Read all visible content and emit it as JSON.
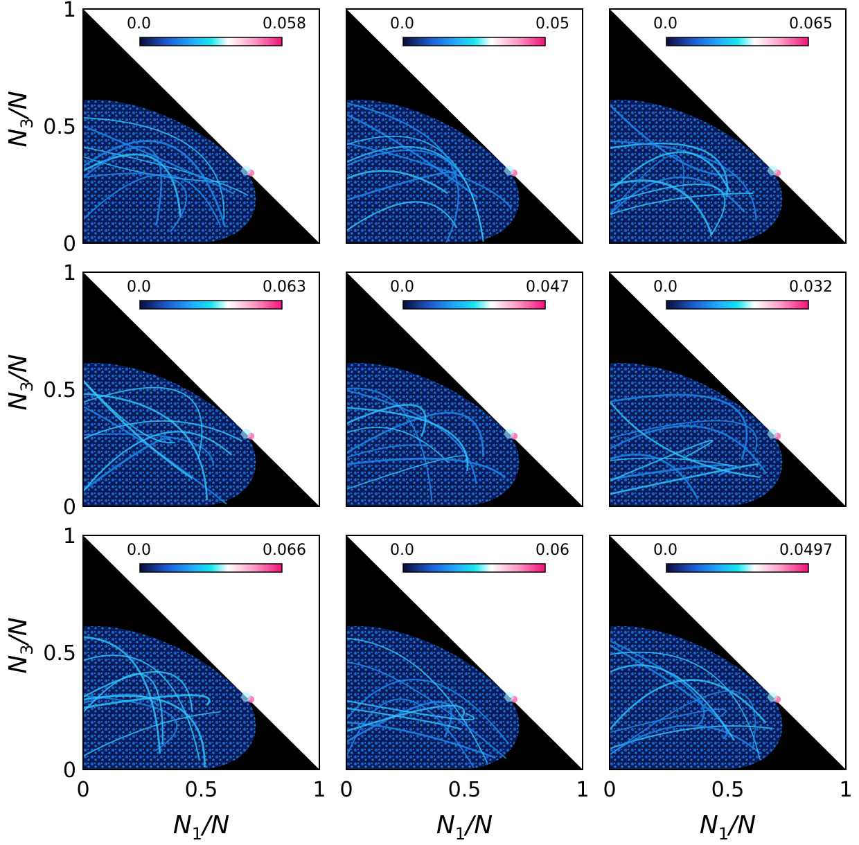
{
  "chart_data": {
    "type": "heatmap",
    "grid": {
      "rows": 3,
      "cols": 3
    },
    "x_axis": {
      "label_main": "N",
      "label_sub": "1",
      "label_tail": "/N",
      "ticks": [
        "0",
        "0.5",
        "1"
      ],
      "range": [
        0,
        1
      ]
    },
    "y_axis": {
      "label_main": "N",
      "label_sub": "3",
      "label_tail": "/N",
      "ticks": [
        "0",
        "0.5",
        "1"
      ],
      "range": [
        0,
        1
      ]
    },
    "colormap": [
      "#0a0a3a",
      "#1e5fd6",
      "#1fb0ff",
      "#14e6f0",
      "#ffffff",
      "#ff9ec8",
      "#f0107a"
    ],
    "panels": [
      {
        "row": 0,
        "col": 0,
        "cbar_min": "0.0",
        "cbar_max": "0.058"
      },
      {
        "row": 0,
        "col": 1,
        "cbar_min": "0.0",
        "cbar_max": "0.05"
      },
      {
        "row": 0,
        "col": 2,
        "cbar_min": "0.0",
        "cbar_max": "0.065"
      },
      {
        "row": 1,
        "col": 0,
        "cbar_min": "0.0",
        "cbar_max": "0.063"
      },
      {
        "row": 1,
        "col": 1,
        "cbar_min": "0.0",
        "cbar_max": "0.047"
      },
      {
        "row": 1,
        "col": 2,
        "cbar_min": "0.0",
        "cbar_max": "0.032"
      },
      {
        "row": 2,
        "col": 0,
        "cbar_min": "0.0",
        "cbar_max": "0.066"
      },
      {
        "row": 2,
        "col": 1,
        "cbar_min": "0.0",
        "cbar_max": "0.06"
      },
      {
        "row": 2,
        "col": 2,
        "cbar_min": "0.0",
        "cbar_max": "0.0497"
      }
    ]
  }
}
